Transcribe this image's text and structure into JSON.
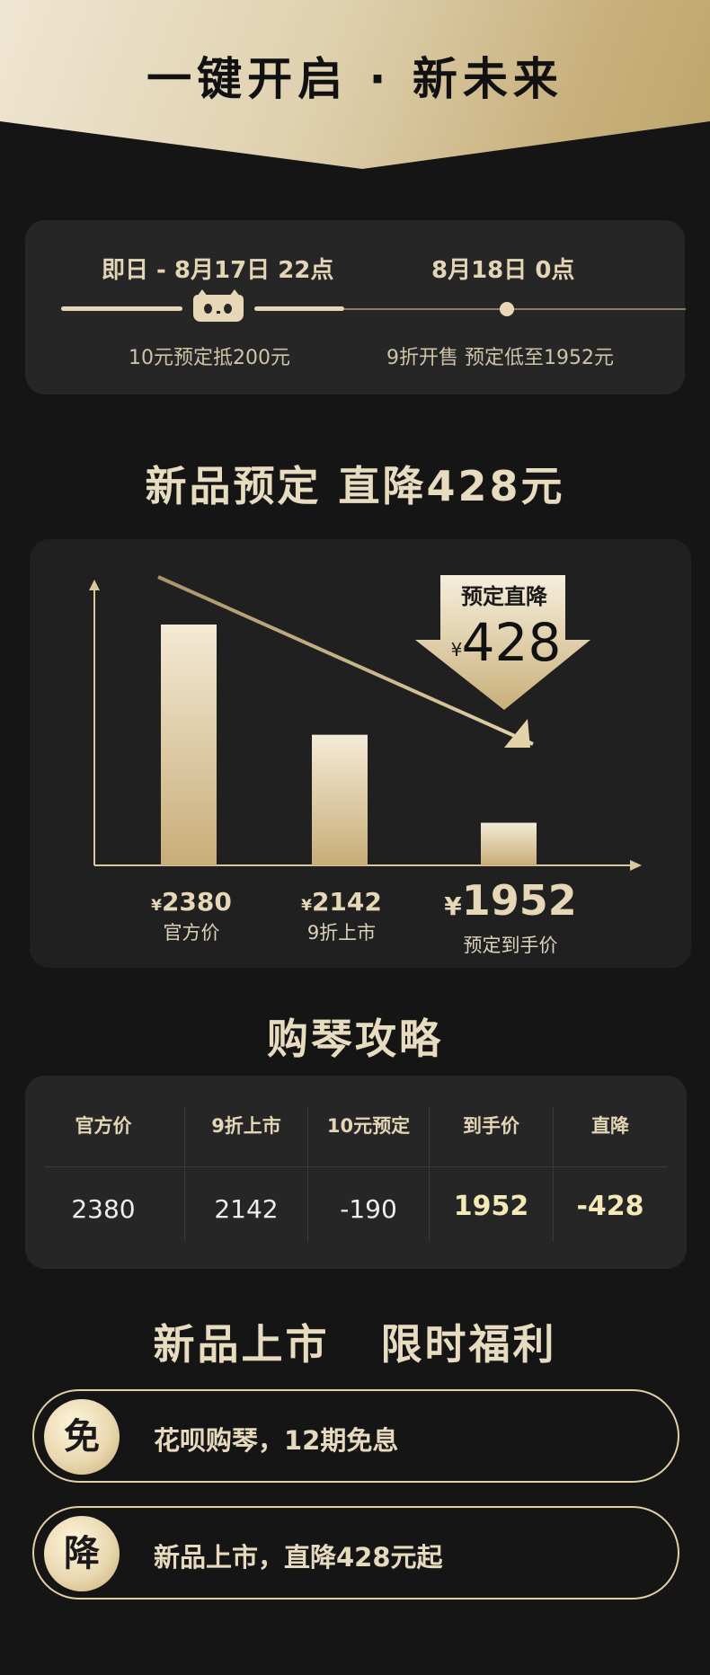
{
  "header": {
    "title": "一键开启 · 新未来"
  },
  "timeline": {
    "phase1_date": "即日 - 8月17日 22点",
    "phase2_date": "8月18日 0点",
    "phase1_desc": "10元预定抵200元",
    "phase2_desc": "9折开售 预定低至1952元",
    "mascot_icon": "tmall-cat-icon"
  },
  "section1_title": "新品预定 直降428元",
  "chart": {
    "badge_label": "预定直降",
    "badge_currency": "¥",
    "badge_value": "428"
  },
  "chart_data": {
    "type": "bar",
    "categories": [
      "官方价",
      "9折上市",
      "预定到手价"
    ],
    "values": [
      2380,
      2142,
      1952
    ],
    "currency": "¥",
    "title": "",
    "xlabel": "",
    "ylabel": "",
    "trend": "down",
    "colors": {
      "bar_top": "#f4ead6",
      "bar_bottom": "#c8ad78",
      "axis": "#d9c79e"
    }
  },
  "price_labels": [
    {
      "currency": "¥",
      "value": "2380",
      "name": "官方价"
    },
    {
      "currency": "¥",
      "value": "2142",
      "name": "9折上市"
    },
    {
      "currency": "¥",
      "value": "1952",
      "name": "预定到手价"
    }
  ],
  "section2_title": "购琴攻略",
  "guide": {
    "headers": [
      "官方价",
      "9折上市",
      "10元预定",
      "到手价",
      "直降"
    ],
    "values": [
      "2380",
      "2142",
      "-190",
      "1952",
      "-428"
    ]
  },
  "section3_title": "新品上市   限时福利",
  "benefits": [
    {
      "badge": "免",
      "text": "花呗购琴，12期免息"
    },
    {
      "badge": "降",
      "text": "新品上市，直降428元起"
    }
  ],
  "colors": {
    "gold": "#e6d8b6",
    "background": "#151515",
    "card": "#262626"
  }
}
